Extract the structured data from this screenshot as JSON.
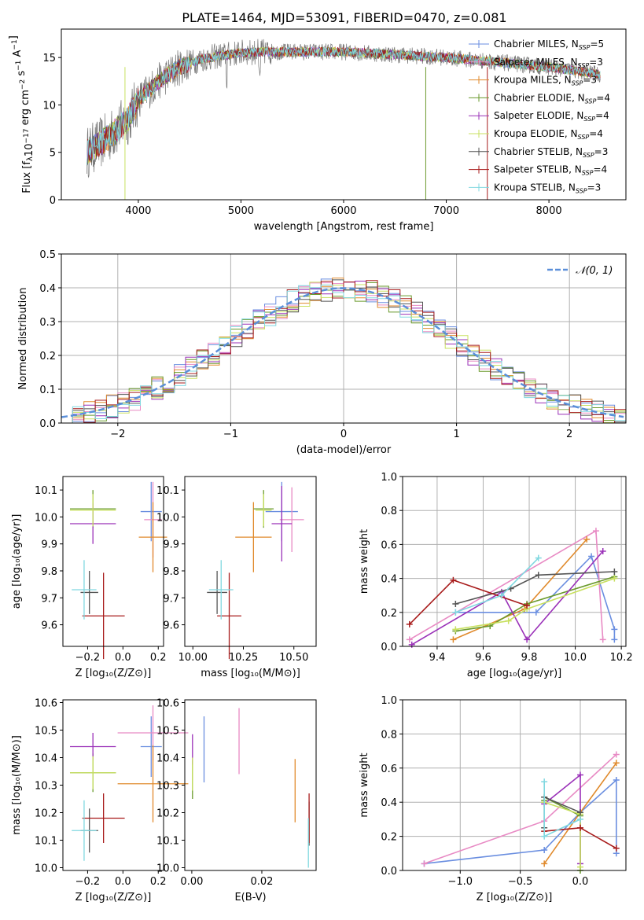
{
  "figure_title": "PLATE=1464, MJD=53091, FIBERID=0470, z=0.081",
  "colors": {
    "Chabrier MILES": "#6a8ee0",
    "Salpeter MILES": "#e88ac4",
    "Kroupa MILES": "#e08a2c",
    "Chabrier ELODIE": "#6a9a2c",
    "Salpeter ELODIE": "#9a30b8",
    "Kroupa ELODIE": "#c8e060",
    "Chabrier STELIB": "#555555",
    "Salpeter STELIB": "#a81c1c",
    "Kroupa STELIB": "#80d8e0",
    "gauss": "#5b8fd9",
    "grid": "#b0b0b0"
  },
  "chart_data": [
    {
      "id": "spectrum",
      "type": "line",
      "title": "PLATE=1464, MJD=53091, FIBERID=0470, z=0.081",
      "xlabel": "wavelength [Angstrom, rest frame]",
      "ylabel": "Flux [f_λ10^-17 erg cm^-2 s^-1 A^-1]",
      "xlim": [
        3250,
        8750
      ],
      "ylim": [
        0,
        18
      ],
      "xticks": [
        4000,
        5000,
        6000,
        7000,
        8000
      ],
      "yticks": [
        0,
        5,
        10,
        15
      ],
      "grid": false,
      "legend_position": "right",
      "legend": [
        {
          "model": "Chabrier MILES",
          "nssp": "5"
        },
        {
          "model": "Salpeter MILES",
          "nssp": "3"
        },
        {
          "model": "Kroupa MILES",
          "nssp": "3"
        },
        {
          "model": "Chabrier ELODIE",
          "nssp": "4"
        },
        {
          "model": "Salpeter ELODIE",
          "nssp": "4"
        },
        {
          "model": "Kroupa ELODIE",
          "nssp": "4"
        },
        {
          "model": "Chabrier STELIB",
          "nssp": "3"
        },
        {
          "model": "Salpeter STELIB",
          "nssp": "4"
        },
        {
          "model": "Kroupa STELIB",
          "nssp": "3"
        }
      ],
      "continuum": {
        "x": [
          3500,
          3700,
          3900,
          4000,
          4200,
          4400,
          4600,
          4800,
          5000,
          5200,
          5500,
          6000,
          6500,
          7000,
          7500,
          8000,
          8500
        ],
        "y": [
          5.0,
          6.5,
          8.5,
          10.5,
          12.5,
          14.0,
          14.8,
          15.2,
          15.5,
          15.6,
          15.6,
          15.6,
          15.3,
          15.0,
          14.5,
          14.0,
          13.2
        ]
      }
    },
    {
      "id": "residuals",
      "type": "bar",
      "xlabel": "(data-model)/error",
      "ylabel": "Normed distribution",
      "xlim": [
        -2.5,
        2.5
      ],
      "ylim": [
        0,
        0.5
      ],
      "xticks": [
        -2,
        -1,
        0,
        1,
        2
      ],
      "yticks": [
        0.0,
        0.1,
        0.2,
        0.3,
        0.4,
        0.5
      ],
      "grid": true,
      "legend_position": "top-right",
      "legend": [
        "𝒩(0, 1)"
      ],
      "bin_width": 0.1
    },
    {
      "id": "age_vs_Z",
      "type": "scatter",
      "xlabel": "Z [log10(Z/Z⊙)]",
      "ylabel": "age  [log10(age/yr)]",
      "xlim": [
        -0.34,
        0.23
      ],
      "ylim": [
        9.52,
        10.15
      ],
      "xticks": [
        -0.2,
        0.0,
        0.2
      ],
      "yticks": [
        9.6,
        9.7,
        9.8,
        9.9,
        10.0,
        10.1
      ],
      "grid": false,
      "points": [
        {
          "model": "Chabrier MILES",
          "x": 0.16,
          "y": 10.02,
          "xerr": 0.06,
          "yerr": 0.11
        },
        {
          "model": "Salpeter MILES",
          "x": 0.17,
          "y": 9.99,
          "xerr": 0.05,
          "yerr": 0.14
        },
        {
          "model": "Kroupa MILES",
          "x": 0.17,
          "y": 9.925,
          "xerr": 0.08,
          "yerr": 0.13
        },
        {
          "model": "Chabrier ELODIE",
          "x": -0.17,
          "y": 10.03,
          "xerr": 0.13,
          "yerr": 0.07
        },
        {
          "model": "Salpeter ELODIE",
          "x": -0.17,
          "y": 9.975,
          "xerr": 0.13,
          "yerr": 0.075
        },
        {
          "model": "Kroupa ELODIE",
          "x": -0.17,
          "y": 10.025,
          "xerr": 0.13,
          "yerr": 0.06
        },
        {
          "model": "Chabrier STELIB",
          "x": -0.19,
          "y": 9.72,
          "xerr": 0.05,
          "yerr": 0.08
        },
        {
          "model": "Salpeter STELIB",
          "x": -0.11,
          "y": 9.633,
          "xerr": 0.12,
          "yerr": 0.16
        },
        {
          "model": "Kroupa STELIB",
          "x": -0.22,
          "y": 9.73,
          "xerr": 0.07,
          "yerr": 0.11
        }
      ]
    },
    {
      "id": "age_vs_mass",
      "type": "scatter",
      "xlabel": "mass [log10(M/M⊙)]",
      "ylabel": "",
      "xlim": [
        9.96,
        10.61
      ],
      "ylim": [
        9.52,
        10.15
      ],
      "xticks": [
        10.0,
        10.25,
        10.5
      ],
      "yticks": [
        9.6,
        9.7,
        9.8,
        9.9,
        10.0,
        10.1
      ],
      "grid": false,
      "points": [
        {
          "model": "Chabrier MILES",
          "x": 10.44,
          "y": 10.02,
          "xerr": 0.08,
          "yerr": 0.11
        },
        {
          "model": "Salpeter MILES",
          "x": 10.49,
          "y": 9.99,
          "xerr": 0.06,
          "yerr": 0.12
        },
        {
          "model": "Kroupa MILES",
          "x": 10.3,
          "y": 9.925,
          "xerr": 0.09,
          "yerr": 0.13
        },
        {
          "model": "Chabrier ELODIE",
          "x": 10.35,
          "y": 10.03,
          "xerr": 0.05,
          "yerr": 0.07
        },
        {
          "model": "Salpeter ELODIE",
          "x": 10.44,
          "y": 9.975,
          "xerr": 0.05,
          "yerr": 0.14
        },
        {
          "model": "Kroupa ELODIE",
          "x": 10.35,
          "y": 10.025,
          "xerr": 0.04,
          "yerr": 0.06
        },
        {
          "model": "Chabrier STELIB",
          "x": 10.12,
          "y": 9.72,
          "xerr": 0.05,
          "yerr": 0.08
        },
        {
          "model": "Salpeter STELIB",
          "x": 10.18,
          "y": 9.633,
          "xerr": 0.06,
          "yerr": 0.16
        },
        {
          "model": "Kroupa STELIB",
          "x": 10.14,
          "y": 9.73,
          "xerr": 0.06,
          "yerr": 0.11
        }
      ]
    },
    {
      "id": "weight_vs_age",
      "type": "line",
      "xlabel": "age  [log10(age/yr)]",
      "ylabel": "mass weight",
      "xlim": [
        9.25,
        10.22
      ],
      "ylim": [
        0,
        1
      ],
      "xticks": [
        9.4,
        9.6,
        9.8,
        10.0,
        10.2
      ],
      "yticks": [
        0.0,
        0.2,
        0.4,
        0.6,
        0.8,
        1.0
      ],
      "grid": true,
      "series": [
        {
          "model": "Chabrier MILES",
          "x": [
            9.48,
            9.83,
            10.07,
            10.17,
            10.17
          ],
          "y": [
            0.2,
            0.2,
            0.53,
            0.1,
            0.04
          ]
        },
        {
          "model": "Salpeter MILES",
          "x": [
            9.28,
            10.09,
            10.12
          ],
          "y": [
            0.04,
            0.68,
            0.04
          ]
        },
        {
          "model": "Kroupa MILES",
          "x": [
            9.47,
            9.78,
            10.05
          ],
          "y": [
            0.04,
            0.22,
            0.63
          ]
        },
        {
          "model": "Chabrier ELODIE",
          "x": [
            9.48,
            9.63,
            9.79,
            10.17
          ],
          "y": [
            0.09,
            0.12,
            0.25,
            0.41
          ]
        },
        {
          "model": "Salpeter ELODIE",
          "x": [
            9.29,
            9.68,
            9.79,
            10.12
          ],
          "y": [
            0.01,
            0.32,
            0.04,
            0.56
          ]
        },
        {
          "model": "Kroupa ELODIE",
          "x": [
            9.48,
            9.71,
            9.79,
            10.17
          ],
          "y": [
            0.1,
            0.15,
            0.22,
            0.4
          ]
        },
        {
          "model": "Chabrier STELIB",
          "x": [
            9.48,
            9.72,
            9.84,
            10.17
          ],
          "y": [
            0.25,
            0.34,
            0.42,
            0.44
          ]
        },
        {
          "model": "Salpeter STELIB",
          "x": [
            9.28,
            9.47,
            9.79
          ],
          "y": [
            0.13,
            0.39,
            0.24
          ]
        },
        {
          "model": "Kroupa STELIB",
          "x": [
            9.48,
            9.68,
            9.84
          ],
          "y": [
            0.2,
            0.3,
            0.52
          ]
        }
      ]
    },
    {
      "id": "mass_vs_Z",
      "type": "scatter",
      "xlabel": "Z [log10(Z/Z⊙)]",
      "ylabel": "mass [log10(M/M⊙)]",
      "xlim": [
        -0.34,
        0.23
      ],
      "ylim": [
        9.99,
        10.61
      ],
      "xticks": [
        -0.2,
        0.0,
        0.2
      ],
      "yticks": [
        10.0,
        10.1,
        10.2,
        10.3,
        10.4,
        10.5,
        10.6
      ],
      "grid": false,
      "points": [
        {
          "model": "Chabrier MILES",
          "x": 0.16,
          "y": 10.44,
          "xerr": 0.06,
          "yerr": 0.11
        },
        {
          "model": "Salpeter MILES",
          "x": 0.17,
          "y": 10.49,
          "xerr": 0.2,
          "yerr": 0.1
        },
        {
          "model": "Kroupa MILES",
          "x": 0.17,
          "y": 10.305,
          "xerr": 0.2,
          "yerr": 0.14
        },
        {
          "model": "Chabrier ELODIE",
          "x": -0.17,
          "y": 10.345,
          "xerr": 0.13,
          "yerr": 0.07
        },
        {
          "model": "Salpeter ELODIE",
          "x": -0.17,
          "y": 10.44,
          "xerr": 0.13,
          "yerr": 0.05
        },
        {
          "model": "Kroupa ELODIE",
          "x": -0.17,
          "y": 10.345,
          "xerr": 0.13,
          "yerr": 0.06
        },
        {
          "model": "Chabrier STELIB",
          "x": -0.19,
          "y": 10.135,
          "xerr": 0.05,
          "yerr": 0.08
        },
        {
          "model": "Salpeter STELIB",
          "x": -0.11,
          "y": 10.18,
          "xerr": 0.12,
          "yerr": 0.09
        },
        {
          "model": "Kroupa STELIB",
          "x": -0.22,
          "y": 10.135,
          "xerr": 0.07,
          "yerr": 0.11
        }
      ]
    },
    {
      "id": "mass_vs_ebv",
      "type": "scatter",
      "xlabel": "E(B-V)",
      "ylabel": "",
      "xlim": [
        -0.002,
        0.0355
      ],
      "ylim": [
        9.99,
        10.61
      ],
      "xticks": [
        0.0,
        0.02
      ],
      "yticks": [
        10.0,
        10.1,
        10.2,
        10.3,
        10.4,
        10.5,
        10.6
      ],
      "grid": false,
      "points": [
        {
          "model": "Chabrier MILES",
          "x": 0.0035,
          "y": 10.43,
          "xerr": 0,
          "yerr": 0.12
        },
        {
          "model": "Salpeter MILES",
          "x": 0.0135,
          "y": 10.46,
          "xerr": 0,
          "yerr": 0.12
        },
        {
          "model": "Kroupa MILES",
          "x": 0.0295,
          "y": 10.28,
          "xerr": 0,
          "yerr": 0.115
        },
        {
          "model": "Chabrier ELODIE",
          "x": 0.0002,
          "y": 10.32,
          "xerr": 0,
          "yerr": 0.07
        },
        {
          "model": "Salpeter ELODIE",
          "x": 0.0002,
          "y": 10.43,
          "xerr": 0,
          "yerr": 0.055
        },
        {
          "model": "Kroupa ELODIE",
          "x": 0.0002,
          "y": 10.34,
          "xerr": 0,
          "yerr": 0.06
        },
        {
          "model": "Chabrier STELIB",
          "x": 0.0335,
          "y": 10.16,
          "xerr": 0,
          "yerr": 0.08
        },
        {
          "model": "Salpeter STELIB",
          "x": 0.0335,
          "y": 10.18,
          "xerr": 0,
          "yerr": 0.09
        },
        {
          "model": "Kroupa STELIB",
          "x": 0.0333,
          "y": 10.09,
          "xerr": 0,
          "yerr": 0.09
        }
      ]
    },
    {
      "id": "weight_vs_Z",
      "type": "line",
      "xlabel": "Z [log10(Z/Z⊙)]",
      "ylabel": "mass weight",
      "xlim": [
        -1.48,
        0.38
      ],
      "ylim": [
        0,
        1
      ],
      "xticks": [
        -1.0,
        -0.5,
        0.0
      ],
      "yticks": [
        0.0,
        0.2,
        0.4,
        0.6,
        0.8,
        1.0
      ],
      "grid": true,
      "series": [
        {
          "model": "Chabrier MILES",
          "x": [
            -1.3,
            -0.3,
            0.0,
            0.3,
            0.3
          ],
          "y": [
            0.04,
            0.12,
            0.34,
            0.53,
            0.1
          ]
        },
        {
          "model": "Salpeter MILES",
          "x": [
            -1.3,
            -0.3,
            0.3
          ],
          "y": [
            0.04,
            0.29,
            0.68
          ]
        },
        {
          "model": "Kroupa MILES",
          "x": [
            -0.3,
            0.0,
            0.3
          ],
          "y": [
            0.04,
            0.34,
            0.63
          ]
        },
        {
          "model": "Chabrier ELODIE",
          "x": [
            -0.3,
            -0.3,
            0.0,
            0.0
          ],
          "y": [
            0.41,
            0.43,
            0.32,
            0.0
          ]
        },
        {
          "model": "Salpeter ELODIE",
          "x": [
            -0.3,
            0.0,
            0.0
          ],
          "y": [
            0.39,
            0.56,
            0.04
          ]
        },
        {
          "model": "Kroupa ELODIE",
          "x": [
            -0.3,
            0.0,
            0.0
          ],
          "y": [
            0.4,
            0.33,
            0.02
          ]
        },
        {
          "model": "Chabrier STELIB",
          "x": [
            -0.3,
            -0.3,
            0.0
          ],
          "y": [
            0.25,
            0.43,
            0.34
          ]
        },
        {
          "model": "Salpeter STELIB",
          "x": [
            -0.3,
            0.0,
            0.3
          ],
          "y": [
            0.23,
            0.25,
            0.13
          ]
        },
        {
          "model": "Kroupa STELIB",
          "x": [
            -0.3,
            -0.3,
            0.0
          ],
          "y": [
            0.52,
            0.2,
            0.3
          ]
        }
      ]
    }
  ]
}
